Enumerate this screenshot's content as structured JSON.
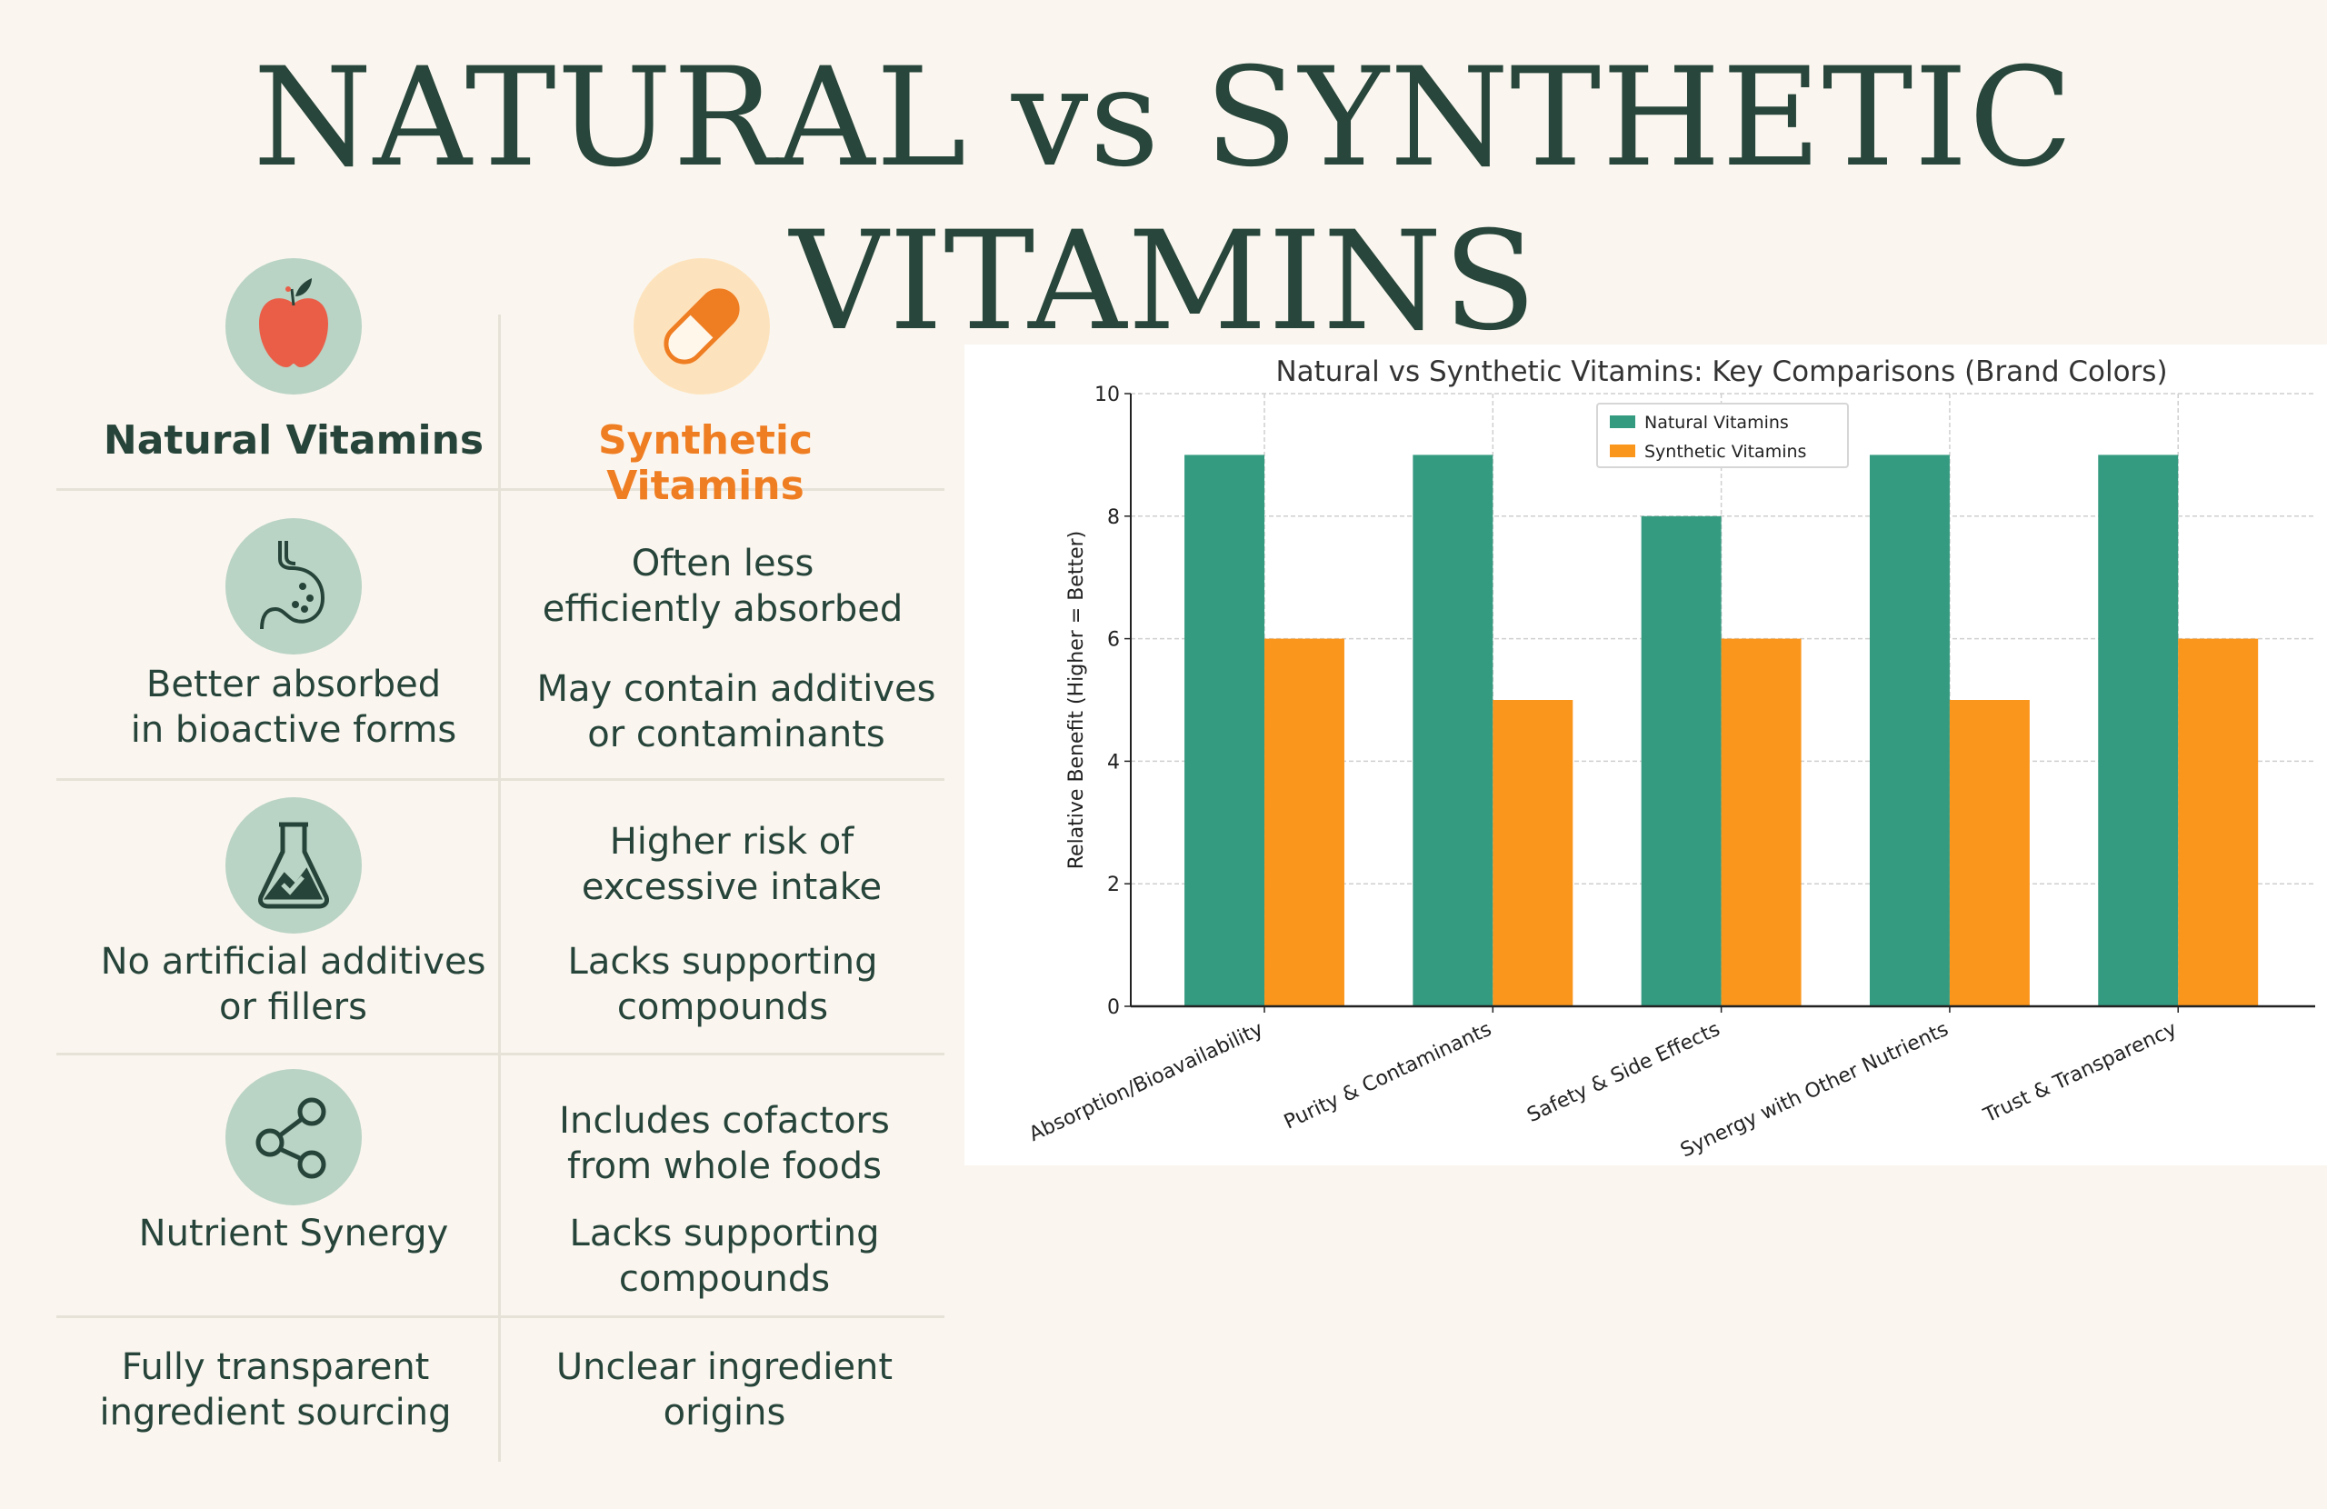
{
  "title": "NATURAL vs SYNTHETIC VITAMINS",
  "comparison": {
    "natural_header": "Natural Vitamins",
    "synthetic_header": "Synthetic Vitamins",
    "rows": [
      {
        "natural": [
          "Better absorbed",
          "in bioactive forms"
        ],
        "synthetic": [
          "Often less",
          "efficiently absorbed"
        ],
        "synthetic2": [
          "May contain additives",
          "or contaminants"
        ]
      },
      {
        "natural": [
          "No artificial additives",
          "or fillers"
        ],
        "synthetic": [
          "Higher risk of",
          "excessive intake"
        ],
        "synthetic2": [
          "Lacks supporting",
          "compounds"
        ]
      },
      {
        "natural": [
          "Nutrient Synergy"
        ],
        "synthetic": [
          "Includes cofactors",
          "from whole foods"
        ],
        "synthetic2": [
          "Lacks supporting",
          "compounds"
        ]
      },
      {
        "natural": [
          "Fully transparent",
          "ingredient sourcing"
        ],
        "synthetic": [
          "Unclear ingredient",
          "origins"
        ]
      }
    ],
    "colors": {
      "natural": "#27443a",
      "synthetic": "#ef7d22"
    }
  },
  "chart_data": {
    "type": "bar",
    "title": "Natural vs Synthetic Vitamins: Key Comparisons (Brand Colors)",
    "xlabel": "",
    "ylabel": "Relative Benefit (Higher = Better)",
    "categories": [
      "Absorption/Bioavailability",
      "Purity & Contaminants",
      "Safety & Side Effects",
      "Synergy with Other Nutrients",
      "Trust & Transparency"
    ],
    "series": [
      {
        "name": "Natural Vitamins",
        "values": [
          9,
          9,
          8,
          9,
          9
        ],
        "color": "#359b80"
      },
      {
        "name": "Synthetic Vitamins",
        "values": [
          6,
          5,
          6,
          5,
          6
        ],
        "color": "#fb961c"
      }
    ],
    "ylim": [
      0,
      10
    ],
    "yticks": [
      "0",
      "2",
      "4",
      "6",
      "8",
      "10"
    ],
    "grid": true,
    "legend": "top-center"
  }
}
